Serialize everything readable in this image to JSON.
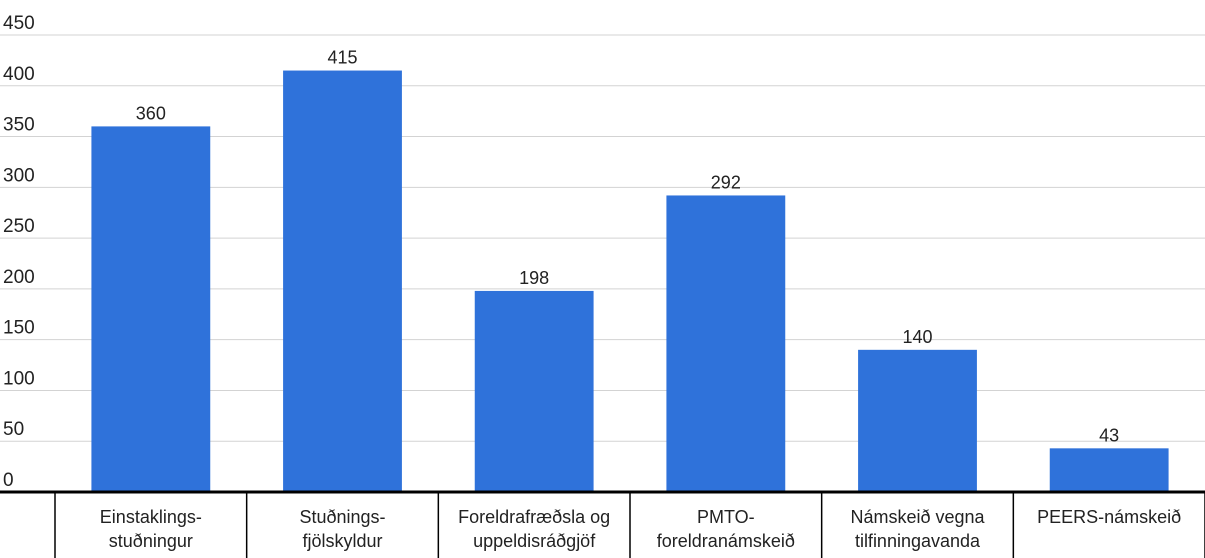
{
  "chart_data": {
    "type": "bar",
    "title": "",
    "xlabel": "",
    "ylabel": "",
    "ylim": [
      0,
      450
    ],
    "y_ticks": [
      0,
      50,
      100,
      150,
      200,
      250,
      300,
      350,
      400,
      450
    ],
    "grid": true,
    "bar_color": "#2f72da",
    "categories": [
      [
        "Einstaklings-",
        "stuðningur"
      ],
      [
        "Stuðnings-",
        "fjölskyldur"
      ],
      [
        "Foreldrafræðsla og",
        "uppeldisráðgjöf"
      ],
      [
        "PMTO-",
        "foreldranámskeið"
      ],
      [
        "Námskeið vegna",
        "tilfinningavanda"
      ],
      [
        "PEERS-námskeið"
      ]
    ],
    "values": [
      360,
      415,
      198,
      292,
      140,
      43
    ]
  }
}
